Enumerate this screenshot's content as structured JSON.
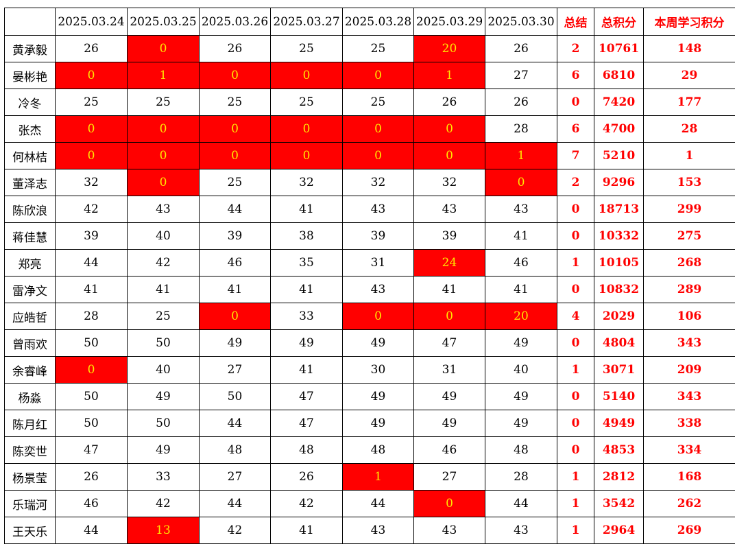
{
  "colors": {
    "highlight_fill": "#ff0000",
    "highlight_text": "#ffe600",
    "summary_text": "#ff0000"
  },
  "header": {
    "corner": "",
    "dates": [
      "2025.03.24",
      "2025.03.25",
      "2025.03.26",
      "2025.03.27",
      "2025.03.28",
      "2025.03.29",
      "2025.03.30"
    ],
    "zongjie": "总结",
    "total_points": "总积分",
    "week_points": "本周学习积分"
  },
  "rows": [
    {
      "name": "黄承毅",
      "days": [
        26,
        0,
        26,
        25,
        25,
        20,
        26
      ],
      "hl": [
        false,
        true,
        false,
        false,
        false,
        true,
        false
      ],
      "zongjie": 2,
      "total": 10761,
      "week": 148
    },
    {
      "name": "晏彬艳",
      "days": [
        0,
        1,
        0,
        0,
        0,
        1,
        27
      ],
      "hl": [
        true,
        true,
        true,
        true,
        true,
        true,
        false
      ],
      "zongjie": 6,
      "total": 6810,
      "week": 29
    },
    {
      "name": "冷冬",
      "days": [
        25,
        25,
        25,
        25,
        25,
        26,
        26
      ],
      "hl": [
        false,
        false,
        false,
        false,
        false,
        false,
        false
      ],
      "zongjie": 0,
      "total": 7420,
      "week": 177
    },
    {
      "name": "张杰",
      "days": [
        0,
        0,
        0,
        0,
        0,
        0,
        28
      ],
      "hl": [
        true,
        true,
        true,
        true,
        true,
        true,
        false
      ],
      "zongjie": 6,
      "total": 4700,
      "week": 28
    },
    {
      "name": "何林桔",
      "days": [
        0,
        0,
        0,
        0,
        0,
        0,
        1
      ],
      "hl": [
        true,
        true,
        true,
        true,
        true,
        true,
        true
      ],
      "zongjie": 7,
      "total": 5210,
      "week": 1
    },
    {
      "name": "董泽志",
      "days": [
        32,
        0,
        25,
        32,
        32,
        32,
        0
      ],
      "hl": [
        false,
        true,
        false,
        false,
        false,
        false,
        true
      ],
      "zongjie": 2,
      "total": 9296,
      "week": 153
    },
    {
      "name": "陈欣浪",
      "days": [
        42,
        43,
        44,
        41,
        43,
        43,
        43
      ],
      "hl": [
        false,
        false,
        false,
        false,
        false,
        false,
        false
      ],
      "zongjie": 0,
      "total": 18713,
      "week": 299
    },
    {
      "name": "蒋佳慧",
      "days": [
        39,
        40,
        39,
        38,
        39,
        39,
        41
      ],
      "hl": [
        false,
        false,
        false,
        false,
        false,
        false,
        false
      ],
      "zongjie": 0,
      "total": 10332,
      "week": 275
    },
    {
      "name": "郑亮",
      "days": [
        44,
        42,
        46,
        35,
        31,
        24,
        46
      ],
      "hl": [
        false,
        false,
        false,
        false,
        false,
        true,
        false
      ],
      "zongjie": 1,
      "total": 10105,
      "week": 268
    },
    {
      "name": "雷净文",
      "days": [
        41,
        41,
        41,
        41,
        43,
        41,
        41
      ],
      "hl": [
        false,
        false,
        false,
        false,
        false,
        false,
        false
      ],
      "zongjie": 0,
      "total": 10832,
      "week": 289
    },
    {
      "name": "应皓哲",
      "days": [
        28,
        25,
        0,
        33,
        0,
        0,
        20
      ],
      "hl": [
        false,
        false,
        true,
        false,
        true,
        true,
        true
      ],
      "zongjie": 4,
      "total": 2029,
      "week": 106
    },
    {
      "name": "曾雨欢",
      "days": [
        50,
        50,
        49,
        49,
        49,
        47,
        49
      ],
      "hl": [
        false,
        false,
        false,
        false,
        false,
        false,
        false
      ],
      "zongjie": 0,
      "total": 4804,
      "week": 343
    },
    {
      "name": "余睿峰",
      "days": [
        0,
        40,
        27,
        41,
        30,
        31,
        40
      ],
      "hl": [
        true,
        false,
        false,
        false,
        false,
        false,
        false
      ],
      "zongjie": 1,
      "total": 3071,
      "week": 209
    },
    {
      "name": "杨淼",
      "days": [
        50,
        49,
        50,
        47,
        49,
        49,
        49
      ],
      "hl": [
        false,
        false,
        false,
        false,
        false,
        false,
        false
      ],
      "zongjie": 0,
      "total": 5140,
      "week": 343
    },
    {
      "name": "陈月红",
      "days": [
        50,
        50,
        44,
        47,
        49,
        49,
        49
      ],
      "hl": [
        false,
        false,
        false,
        false,
        false,
        false,
        false
      ],
      "zongjie": 0,
      "total": 4949,
      "week": 338
    },
    {
      "name": "陈奕世",
      "days": [
        47,
        49,
        48,
        48,
        48,
        46,
        48
      ],
      "hl": [
        false,
        false,
        false,
        false,
        false,
        false,
        false
      ],
      "zongjie": 0,
      "total": 4853,
      "week": 334
    },
    {
      "name": "杨景莹",
      "days": [
        26,
        33,
        27,
        26,
        1,
        27,
        28
      ],
      "hl": [
        false,
        false,
        false,
        false,
        true,
        false,
        false
      ],
      "zongjie": 1,
      "total": 2812,
      "week": 168
    },
    {
      "name": "乐瑞河",
      "days": [
        46,
        42,
        44,
        42,
        44,
        0,
        44
      ],
      "hl": [
        false,
        false,
        false,
        false,
        false,
        true,
        false
      ],
      "zongjie": 1,
      "total": 3542,
      "week": 262
    },
    {
      "name": "王天乐",
      "days": [
        44,
        13,
        42,
        41,
        43,
        43,
        43
      ],
      "hl": [
        false,
        true,
        false,
        false,
        false,
        false,
        false
      ],
      "zongjie": 1,
      "total": 2964,
      "week": 269
    }
  ]
}
